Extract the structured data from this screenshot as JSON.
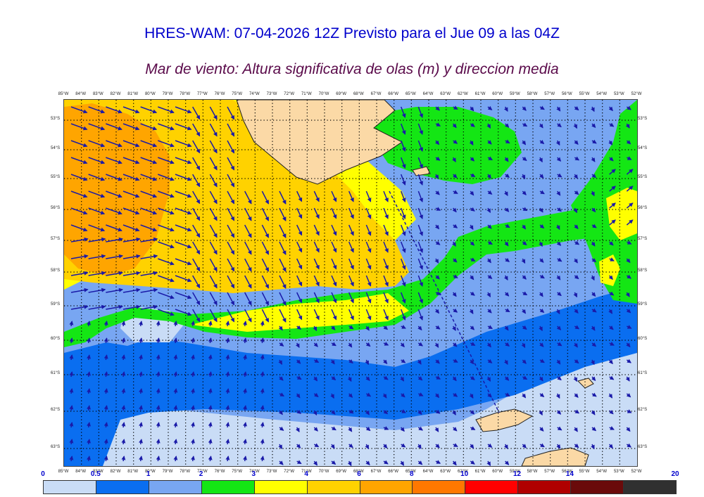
{
  "header": {
    "title": "HRES-WAM: 07-04-2026 12Z Previsto para el Jue 09 a las 04Z",
    "subtitle": "Mar de viento: Altura significativa de olas (m) y direccion media"
  },
  "map": {
    "lon_labels_top": [
      "85°W",
      "84°W",
      "83°W",
      "82°W",
      "81°W",
      "80°W",
      "79°W",
      "78°W",
      "77°W",
      "76°W",
      "75°W",
      "74°W",
      "73°W",
      "72°W",
      "71°W",
      "70°W",
      "69°W",
      "68°W",
      "67°W",
      "66°W",
      "65°W",
      "64°W",
      "63°W",
      "62°W",
      "61°W",
      "60°W",
      "59°W",
      "58°W",
      "57°W",
      "56°W",
      "55°W",
      "54°W",
      "53°W",
      "52°W"
    ],
    "lon_labels_bottom": [
      "85°W",
      "84°W",
      "83°W",
      "82°W",
      "81°W",
      "80°W",
      "79°W",
      "78°W",
      "77°W",
      "76°W",
      "75°W",
      "74°W",
      "73°W",
      "72°W",
      "71°W",
      "70°W",
      "69°W",
      "68°W",
      "67°W",
      "66°W",
      "65°W",
      "64°W",
      "63°W",
      "62°W",
      "61°W",
      "60°W",
      "59°W",
      "58°W",
      "57°W",
      "56°W",
      "55°W",
      "54°W",
      "53°W",
      "52°W"
    ],
    "lat_labels": [
      "53°S",
      "54°S",
      "55°S",
      "56°S",
      "57°S",
      "58°S",
      "59°S",
      "60°S",
      "61°S",
      "62°S",
      "63°S"
    ],
    "colors": {
      "land": "#fbd9a6",
      "arrow": "#1a1aa8",
      "grid": "#000000",
      "track": "#1a1aa8"
    }
  },
  "colorbar": {
    "ticks": [
      "0",
      "0.5",
      "1",
      "2",
      "3",
      "4",
      "6",
      "8",
      "10",
      "12",
      "14",
      "20"
    ],
    "colors": [
      "#c9dcf6",
      "#0a6ef0",
      "#78a6f2",
      "#14e614",
      "#ffff00",
      "#ffd200",
      "#ffa500",
      "#ff7800",
      "#ff0000",
      "#b00000",
      "#6a0a0a",
      "#303030"
    ]
  }
}
